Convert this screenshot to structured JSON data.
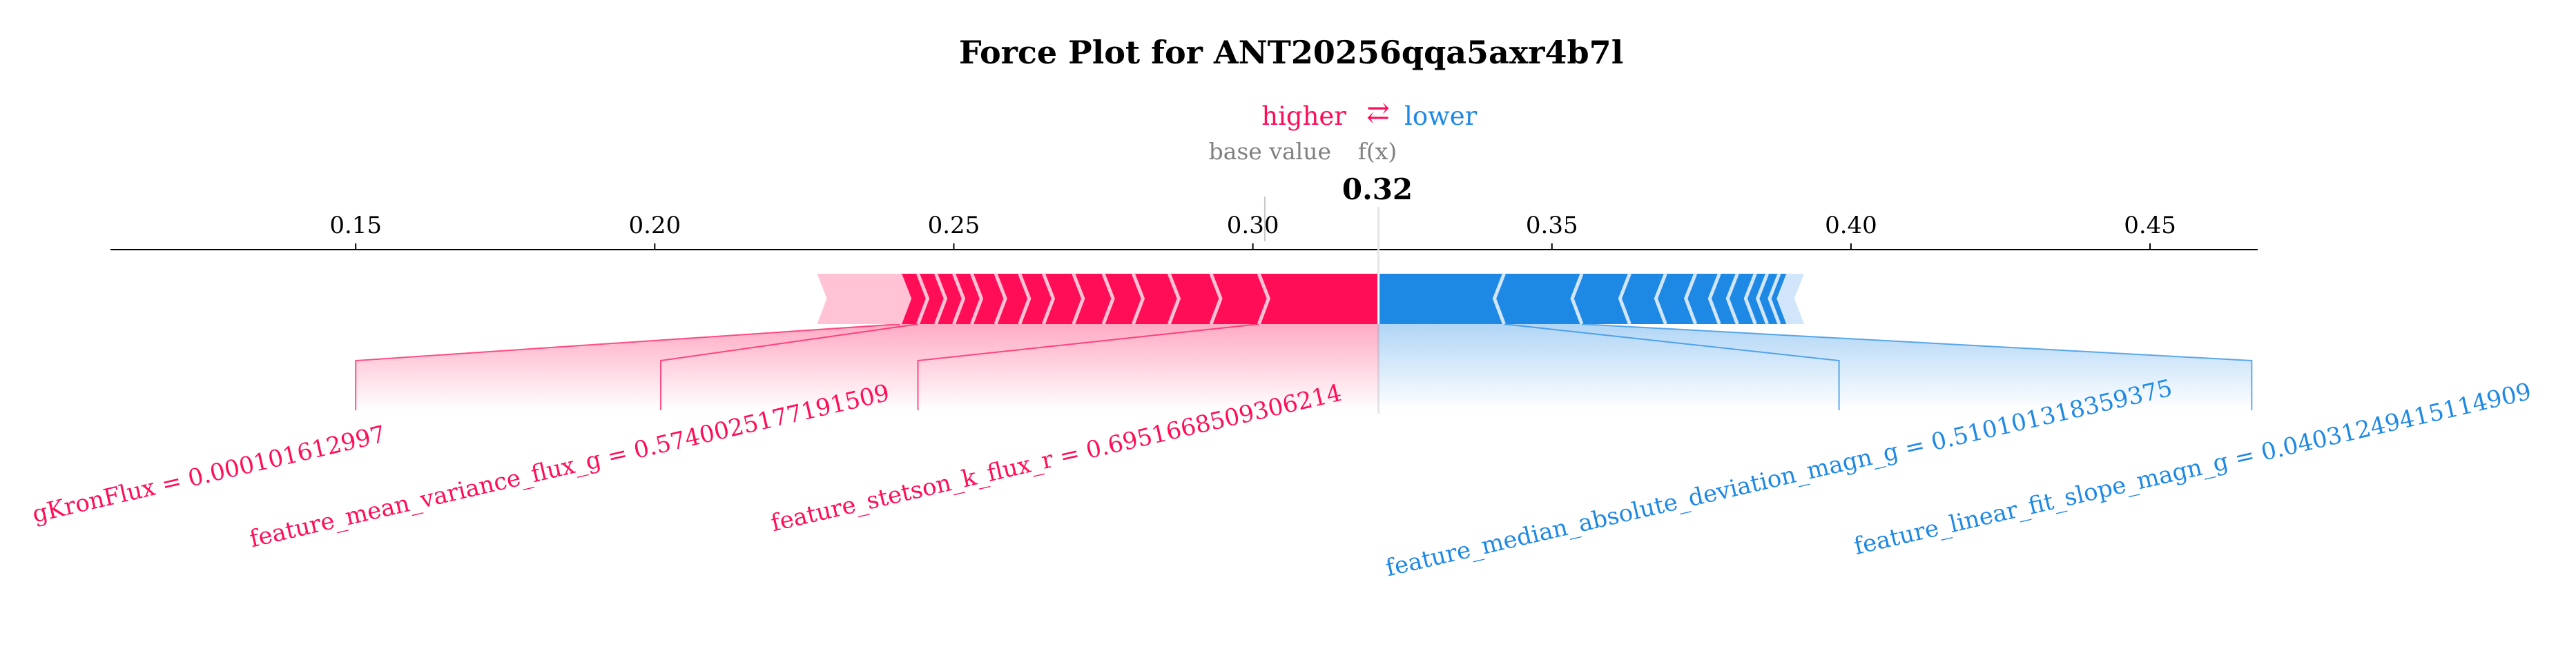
{
  "chart_data": {
    "type": "force",
    "title": "Force Plot for ANT20256qqa5axr4b7l",
    "legend": {
      "higher_label": "higher",
      "arrow_glyph": "⇄",
      "lower_label": "lower"
    },
    "base_value_label": "base value",
    "fx_label": "f(x)",
    "output_value": 0.321,
    "output_value_label": "0.32",
    "base_value": 0.302,
    "x_ticks": [
      0.15,
      0.2,
      0.25,
      0.3,
      0.35,
      0.4,
      0.45
    ],
    "x_tick_labels": [
      "0.15",
      "0.20",
      "0.25",
      "0.30",
      "0.35",
      "0.40",
      "0.45"
    ],
    "xlim": [
      0.109,
      0.468
    ],
    "positive_extent_start": 0.241,
    "negative_extent_end": 0.391,
    "positive_segment_boundaries": [
      0.241,
      0.244,
      0.247,
      0.25,
      0.253,
      0.257,
      0.261,
      0.265,
      0.27,
      0.275,
      0.28,
      0.286,
      0.293,
      0.301
    ],
    "negative_segment_boundaries": [
      0.342,
      0.355,
      0.363,
      0.369,
      0.374,
      0.378,
      0.381,
      0.384,
      0.386,
      0.388,
      0.3895
    ],
    "features": [
      {
        "label": "gKronFlux = 0.000101612997",
        "sign": "positive",
        "connector_x": 0.15,
        "bar_end": 0.241
      },
      {
        "label": "feature_mean_variance_flux_g = 0.5740025177191509",
        "sign": "positive",
        "connector_x": 0.201,
        "bar_end": 0.244
      },
      {
        "label": "feature_stetson_k_flux_r = 0.6951668509306214",
        "sign": "positive",
        "connector_x": 0.244,
        "bar_end": 0.301
      },
      {
        "label": "feature_median_absolute_deviation_magn_g = 0.510101318359375",
        "sign": "negative",
        "connector_x": 0.398,
        "bar_end": 0.342
      },
      {
        "label": "feature_linear_fit_slope_magn_g = 0.04031249415114909",
        "sign": "negative",
        "connector_x": 0.467,
        "bar_end": 0.355
      }
    ],
    "colors": {
      "positive": "#ff0d57",
      "negative": "#1e88e5",
      "positive_light": "#ffc3d5",
      "negative_light": "#d1e6fa",
      "label_gray": "#808080",
      "axis": "#000000"
    }
  }
}
